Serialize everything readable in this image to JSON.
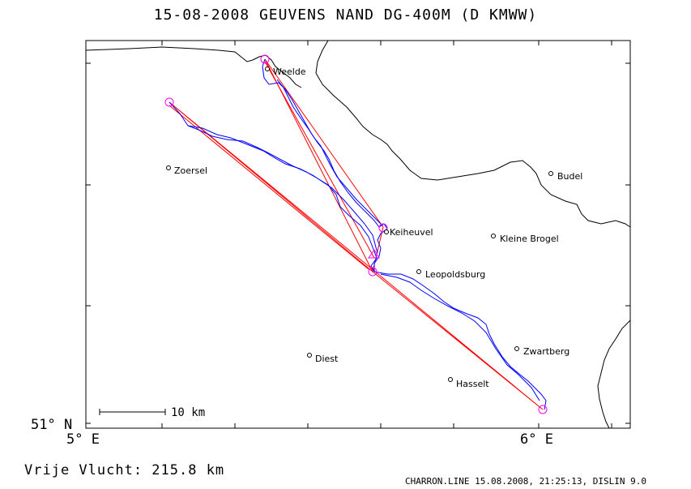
{
  "title": "15-08-2008    GEUVENS NAND    DG-400M (D KMWW)",
  "axes": {
    "lat_label": "51° N",
    "lon_labels": [
      "5° E",
      "6° E"
    ]
  },
  "scale_bar": {
    "label": "10 km"
  },
  "towns": [
    {
      "name": "Weelde"
    },
    {
      "name": "Zoersel"
    },
    {
      "name": "Budel"
    },
    {
      "name": "Keiheuvel"
    },
    {
      "name": "Kleine Brogel"
    },
    {
      "name": "Leopoldsburg"
    },
    {
      "name": "Zwartberg"
    },
    {
      "name": "Diest"
    },
    {
      "name": "Hasselt"
    }
  ],
  "summary": "Vrije Vlucht:  215.8 km",
  "footer": "CHARRON.LINE 15.08.2008, 21:25:13, DISLIN 9.0",
  "colors": {
    "track": "#0000ff",
    "route": "#ff0000",
    "turnpoint": "#ff00ff",
    "border": "#000000"
  }
}
